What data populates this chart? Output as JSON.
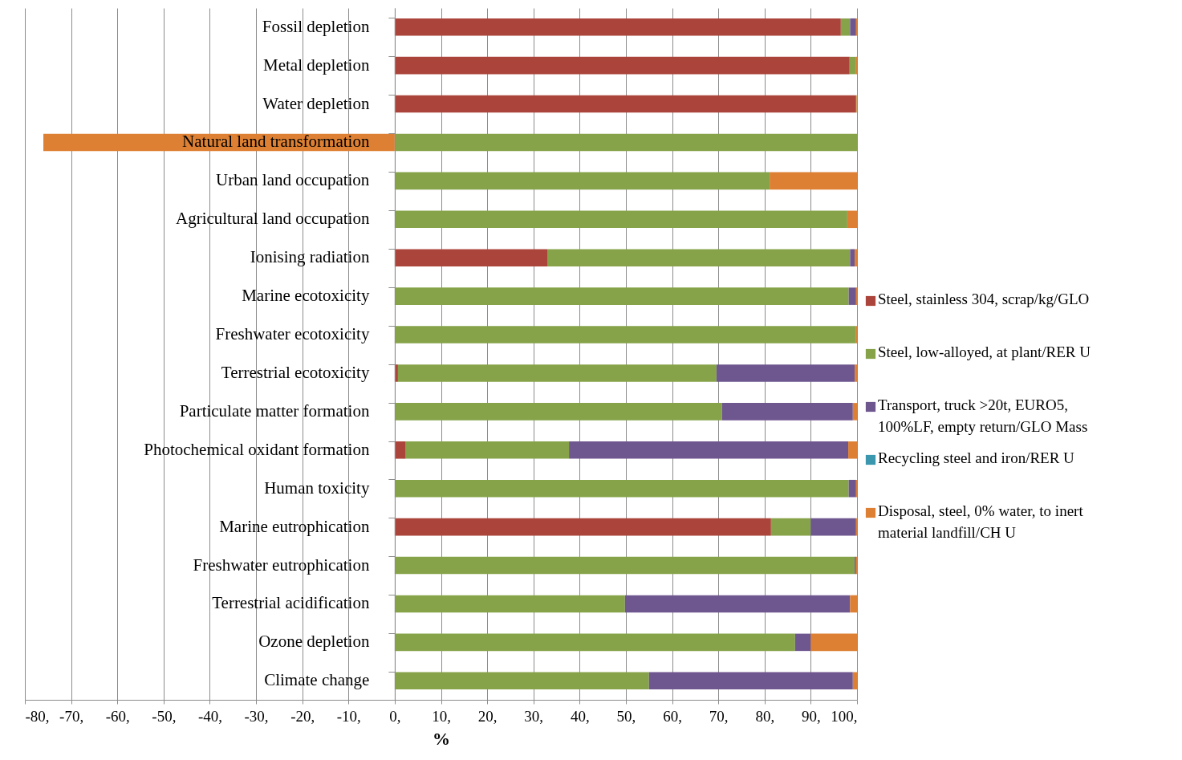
{
  "chart_data": {
    "type": "bar",
    "orientation": "horizontal",
    "stacked": true,
    "xlabel": "%",
    "categories": [
      "Fossil depletion",
      "Metal depletion",
      "Water depletion",
      "Natural land transformation",
      "Urban land occupation",
      "Agricultural land occupation",
      "Ionising radiation",
      "Marine ecotoxicity",
      "Freshwater ecotoxicity",
      "Terrestrial ecotoxicity",
      "Particulate matter formation",
      "Photochemical oxidant formation",
      "Human toxicity",
      "Marine eutrophication",
      "Freshwater eutrophication",
      "Terrestrial acidification",
      "Ozone depletion",
      "Climate change"
    ],
    "series": [
      {
        "name": "Steel, stainless 304, scrap/kg/GLO",
        "color": "#ab443a",
        "values": [
          96.5,
          98.4,
          99.8,
          0,
          0,
          0,
          33.0,
          0,
          0,
          0.7,
          0,
          2.4,
          0,
          81.4,
          0,
          0,
          0,
          0
        ]
      },
      {
        "name": "Steel, low-alloyed, at plant/RER U",
        "color": "#86a349",
        "values": [
          2.0,
          1.4,
          0.1,
          100,
          81.1,
          97.9,
          65.5,
          98.2,
          99.8,
          68.9,
          70.8,
          35.3,
          98.2,
          8.6,
          99.5,
          49.8,
          86.6,
          55.0
        ]
      },
      {
        "name": "Transport, truck >20t, EURO5, 100%LF, empty return/GLO Mass",
        "color": "#6e568f",
        "values": [
          1.3,
          0,
          0,
          0,
          0,
          0,
          1.0,
          1.6,
          0,
          29.9,
          28.3,
          60.4,
          1.6,
          9.8,
          0.3,
          48.7,
          3.4,
          44.1
        ]
      },
      {
        "name": "Recycling steel and iron/RER U",
        "color": "#3a97ad",
        "values": [
          0,
          0,
          0,
          0,
          0,
          0,
          0,
          0,
          0,
          0,
          0,
          0,
          0,
          0,
          0,
          0,
          0,
          0
        ]
      },
      {
        "name": "Disposal, steel, 0% water, to inert material landfill/CH U",
        "color": "#dd8033",
        "values": [
          0.2,
          0.2,
          0.1,
          -76,
          18.9,
          2.1,
          0.5,
          0.2,
          0.2,
          0.5,
          0.9,
          1.9,
          0.2,
          0.2,
          0.2,
          1.5,
          10.0,
          0.9
        ]
      }
    ],
    "xlim": [
      -80,
      100
    ],
    "xticks": [
      {
        "value": -80,
        "label": "-80,"
      },
      {
        "value": -70,
        "label": "-70,"
      },
      {
        "value": -60,
        "label": "-60,"
      },
      {
        "value": -50,
        "label": "-50,"
      },
      {
        "value": -40,
        "label": "-40,"
      },
      {
        "value": -30,
        "label": "-30,"
      },
      {
        "value": -20,
        "label": "-20,"
      },
      {
        "value": -10,
        "label": "-10,"
      },
      {
        "value": 0,
        "label": "0,"
      },
      {
        "value": 10,
        "label": "10,"
      },
      {
        "value": 20,
        "label": "20,"
      },
      {
        "value": 30,
        "label": "30,"
      },
      {
        "value": 40,
        "label": "40,"
      },
      {
        "value": 50,
        "label": "50,"
      },
      {
        "value": 60,
        "label": "60,"
      },
      {
        "value": 70,
        "label": "70,"
      },
      {
        "value": 80,
        "label": "80,"
      },
      {
        "value": 90,
        "label": "90,"
      },
      {
        "value": 100,
        "label": "100,"
      }
    ],
    "grid": "x",
    "legend": "right"
  }
}
